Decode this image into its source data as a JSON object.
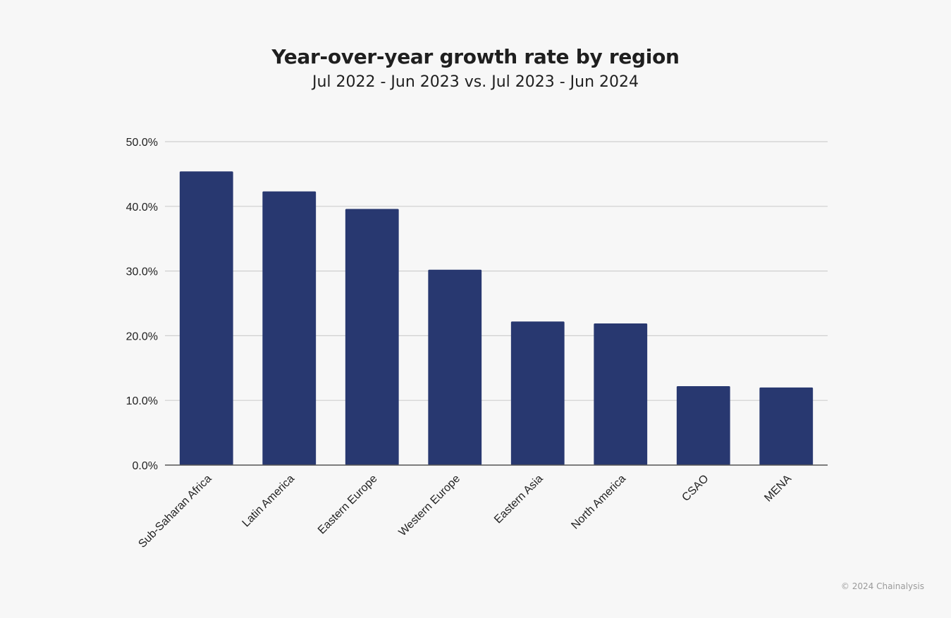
{
  "chart_data": {
    "type": "bar",
    "title": "Year-over-year growth rate by region",
    "subtitle": "Jul 2022 - Jun 2023 vs. Jul 2023 - Jun 2024",
    "categories": [
      "Sub-Saharan Africa",
      "Latin America",
      "Eastern Europe",
      "Western Europe",
      "Eastern Asia",
      "North America",
      "CSAO",
      "MENA"
    ],
    "values": [
      45.4,
      42.3,
      39.6,
      30.2,
      22.2,
      21.9,
      12.2,
      12.0
    ],
    "ylim": [
      0,
      50
    ],
    "yticks": [
      "0.0%",
      "10.0%",
      "20.0%",
      "30.0%",
      "40.0%",
      "50.0%"
    ],
    "xlabel": "",
    "ylabel": "",
    "grid": true,
    "bar_color": "#283870",
    "grid_color": "#cfcfcf",
    "axis_color": "#555555"
  },
  "footer": "© 2024 Chainalysis"
}
